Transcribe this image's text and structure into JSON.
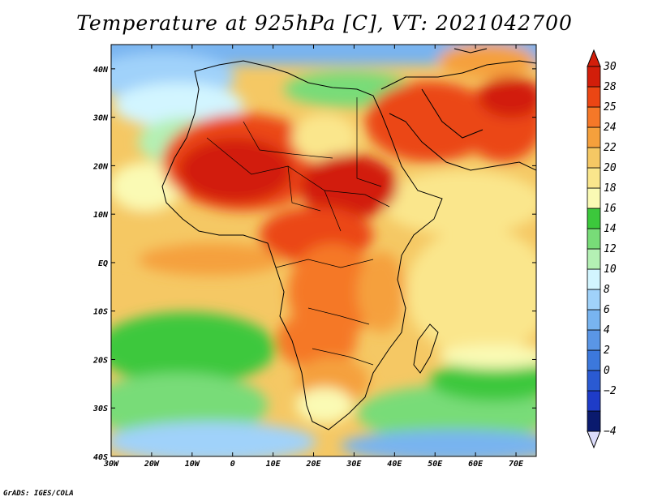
{
  "title": "Temperature at 925hPa [C], VT: 2021042700",
  "footer": "GrADS: IGES/COLA",
  "map": {
    "lon_range": [
      -30,
      75
    ],
    "lat_range": [
      -40,
      45
    ],
    "lon_ticks": [
      {
        "value": -30,
        "label": "30W"
      },
      {
        "value": -20,
        "label": "20W"
      },
      {
        "value": -10,
        "label": "10W"
      },
      {
        "value": 0,
        "label": "0"
      },
      {
        "value": 10,
        "label": "10E"
      },
      {
        "value": 20,
        "label": "20E"
      },
      {
        "value": 30,
        "label": "30E"
      },
      {
        "value": 40,
        "label": "40E"
      },
      {
        "value": 50,
        "label": "50E"
      },
      {
        "value": 60,
        "label": "60E"
      },
      {
        "value": 70,
        "label": "70E"
      }
    ],
    "lat_ticks": [
      {
        "value": 40,
        "label": "40N"
      },
      {
        "value": 30,
        "label": "30N"
      },
      {
        "value": 20,
        "label": "20N"
      },
      {
        "value": 10,
        "label": "10N"
      },
      {
        "value": 0,
        "label": "EQ"
      },
      {
        "value": -10,
        "label": "10S"
      },
      {
        "value": -20,
        "label": "20S"
      },
      {
        "value": -30,
        "label": "30S"
      },
      {
        "value": -40,
        "label": "40S"
      }
    ]
  },
  "colorbar": {
    "levels": [
      "-4",
      "-2",
      "0",
      "2",
      "4",
      "6",
      "8",
      "10",
      "12",
      "14",
      "16",
      "18",
      "20",
      "22",
      "24",
      "25",
      "28",
      "30"
    ],
    "colors": [
      "#0a1a6e",
      "#1e3cc8",
      "#2a5ad2",
      "#3c78dc",
      "#5a96e6",
      "#78b4f0",
      "#a0d2fa",
      "#d2f5ff",
      "#b4f0b4",
      "#78dc78",
      "#3cc83c",
      "#fafab4",
      "#fae68c",
      "#f5c864",
      "#f5a03c",
      "#f57828",
      "#eb4614",
      "#d21e0a"
    ],
    "low_cap_color": "#dcdcfa",
    "high_cap_color": "#d21e0a"
  },
  "chart_data": {
    "type": "heatmap",
    "title": "Temperature at 925hPa [C], VT: 2021042700",
    "x_range": [
      -30,
      75
    ],
    "y_range": [
      -40,
      45
    ],
    "legend": "right",
    "levels": [
      -4,
      -2,
      0,
      2,
      4,
      6,
      8,
      10,
      12,
      14,
      16,
      18,
      20,
      22,
      24,
      25,
      28,
      30
    ]
  }
}
